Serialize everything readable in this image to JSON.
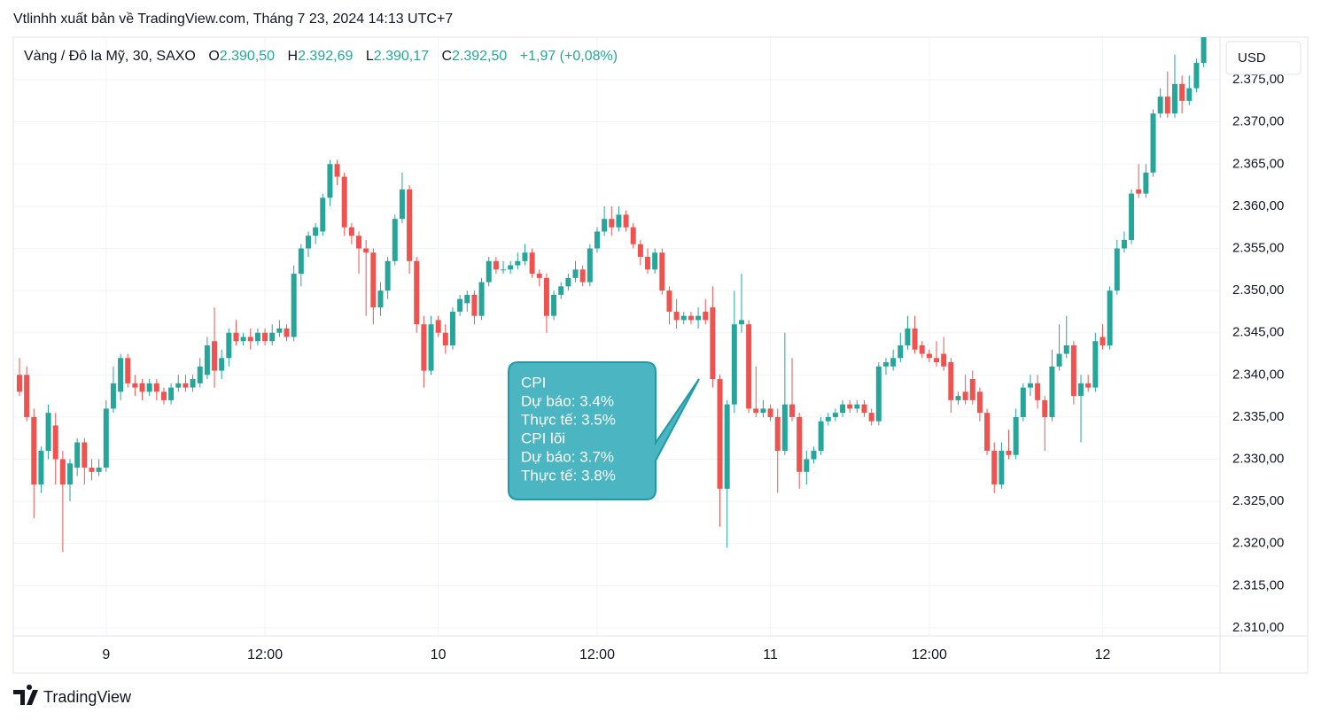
{
  "header": {
    "publish_info": "Vtlinhh xuất bản về TradingView.com, Tháng 7 23, 2024 14:13 UTC+7"
  },
  "legend": {
    "symbol": "Vàng / Đô la Mỹ, 30, SAXO",
    "open_label": "O",
    "open": "2.390,50",
    "high_label": "H",
    "high": "2.392,69",
    "low_label": "L",
    "low": "2.390,17",
    "close_label": "C",
    "close": "2.392,50",
    "change": "+1,97 (+0,08%)"
  },
  "price_axis": {
    "currency": "USD"
  },
  "annotation": {
    "lines": [
      "CPI",
      "Dự báo: 3.4%",
      "Thực tế: 3.5%",
      "CPI lõi",
      "Dự báo: 3.7%",
      "Thực tế: 3.8%"
    ]
  },
  "footer": {
    "brand": "TradingView"
  },
  "chart_data": {
    "type": "candlestick",
    "up_color": "#26a69a",
    "down_color": "#ef5350",
    "grid": true,
    "ylim": [
      2309.05,
      2380.05
    ],
    "yticks": [
      {
        "value": 2310,
        "label": "2.310,00"
      },
      {
        "value": 2315,
        "label": "2.315,00"
      },
      {
        "value": 2320,
        "label": "2.320,00"
      },
      {
        "value": 2325,
        "label": "2.325,00"
      },
      {
        "value": 2330,
        "label": "2.330,00"
      },
      {
        "value": 2335,
        "label": "2.335,00"
      },
      {
        "value": 2340,
        "label": "2.340,00"
      },
      {
        "value": 2345,
        "label": "2.345,00"
      },
      {
        "value": 2350,
        "label": "2.350,00"
      },
      {
        "value": 2355,
        "label": "2.355,00"
      },
      {
        "value": 2360,
        "label": "2.360,00"
      },
      {
        "value": 2365,
        "label": "2.365,00"
      },
      {
        "value": 2370,
        "label": "2.370,00"
      },
      {
        "value": 2375,
        "label": "2.375,00"
      }
    ],
    "categories": [
      null,
      null,
      null,
      null,
      null,
      null,
      null,
      null,
      null,
      null,
      null,
      null,
      "9",
      null,
      null,
      null,
      null,
      null,
      null,
      null,
      null,
      null,
      null,
      null,
      null,
      null,
      null,
      null,
      null,
      null,
      null,
      null,
      null,
      null,
      "12:00",
      null,
      null,
      null,
      null,
      null,
      null,
      null,
      null,
      null,
      null,
      null,
      null,
      null,
      null,
      null,
      null,
      null,
      null,
      null,
      null,
      null,
      null,
      null,
      "10",
      null,
      null,
      null,
      null,
      null,
      null,
      null,
      null,
      null,
      null,
      null,
      null,
      null,
      null,
      null,
      null,
      null,
      null,
      null,
      null,
      null,
      "12:00",
      null,
      null,
      null,
      null,
      null,
      null,
      null,
      null,
      null,
      null,
      null,
      null,
      null,
      null,
      null,
      null,
      null,
      null,
      null,
      null,
      null,
      null,
      null,
      "11",
      null,
      null,
      null,
      null,
      null,
      null,
      null,
      null,
      null,
      null,
      null,
      null,
      null,
      null,
      null,
      null,
      null,
      null,
      null,
      null,
      null,
      "12:00",
      null,
      null,
      null,
      null,
      null,
      null,
      null,
      null,
      null,
      null,
      null,
      null,
      null,
      null,
      null,
      null,
      null,
      null,
      null,
      null,
      null,
      null,
      null,
      "12",
      null,
      null,
      null,
      null,
      null,
      null,
      null,
      null,
      null,
      null,
      null,
      null,
      null,
      null
    ],
    "ohlc": [
      [
        2340,
        2342,
        2337.5,
        2338
      ],
      [
        2340,
        2341,
        2334.5,
        2335
      ],
      [
        2335,
        2336,
        2323,
        2327
      ],
      [
        2327,
        2331.5,
        2326,
        2331
      ],
      [
        2331,
        2336.5,
        2330,
        2335.5
      ],
      [
        2334,
        2335.5,
        2327,
        2330
      ],
      [
        2330,
        2331,
        2319,
        2327
      ],
      [
        2327,
        2330,
        2325,
        2329.5
      ],
      [
        2329,
        2332.5,
        2328,
        2332
      ],
      [
        2332,
        2332.5,
        2327,
        2329
      ],
      [
        2329,
        2330,
        2327.5,
        2328.5
      ],
      [
        2328.5,
        2330,
        2328,
        2329
      ],
      [
        2329,
        2337,
        2328.5,
        2336
      ],
      [
        2336,
        2341,
        2335.5,
        2339
      ],
      [
        2338,
        2342.5,
        2337,
        2342
      ],
      [
        2342,
        2342.5,
        2338.5,
        2339
      ],
      [
        2339,
        2340,
        2337.5,
        2338.5
      ],
      [
        2339,
        2339.5,
        2337,
        2338
      ],
      [
        2338,
        2339.5,
        2337.5,
        2339
      ],
      [
        2339,
        2339.5,
        2337,
        2338
      ],
      [
        2338,
        2338.5,
        2336.5,
        2337
      ],
      [
        2337,
        2339,
        2336.5,
        2338.5
      ],
      [
        2338.5,
        2340,
        2338,
        2339
      ],
      [
        2339,
        2340,
        2338,
        2338.5
      ],
      [
        2338.5,
        2340,
        2338,
        2339.5
      ],
      [
        2339,
        2342,
        2338.5,
        2341
      ],
      [
        2340,
        2344.5,
        2339.5,
        2343.5
      ],
      [
        2344,
        2348,
        2338.5,
        2340.5
      ],
      [
        2340.5,
        2343,
        2339.5,
        2342
      ],
      [
        2342,
        2345.5,
        2341,
        2345
      ],
      [
        2345,
        2346.5,
        2343.5,
        2344
      ],
      [
        2344,
        2345,
        2343.5,
        2344.5
      ],
      [
        2344.5,
        2345.5,
        2343,
        2344
      ],
      [
        2344,
        2345.5,
        2343.5,
        2345
      ],
      [
        2345,
        2345.5,
        2343.5,
        2344
      ],
      [
        2344,
        2346,
        2343.5,
        2345
      ],
      [
        2345,
        2346.5,
        2344.5,
        2345.5
      ],
      [
        2345.5,
        2346,
        2344,
        2344.5
      ],
      [
        2344.5,
        2353,
        2344,
        2352
      ],
      [
        2352,
        2355.5,
        2350.5,
        2355
      ],
      [
        2355,
        2357,
        2354,
        2356.5
      ],
      [
        2356.5,
        2358,
        2355.5,
        2357.5
      ],
      [
        2357,
        2361.5,
        2356.5,
        2361
      ],
      [
        2361,
        2365.5,
        2360,
        2365
      ],
      [
        2365,
        2365.5,
        2362.5,
        2363.5
      ],
      [
        2363.5,
        2364,
        2356.5,
        2357.5
      ],
      [
        2357.5,
        2358,
        2355.5,
        2356.5
      ],
      [
        2356.5,
        2357,
        2352,
        2355
      ],
      [
        2355,
        2356,
        2347,
        2354.5
      ],
      [
        2354.5,
        2355,
        2346,
        2348
      ],
      [
        2348,
        2351,
        2347,
        2350
      ],
      [
        2350,
        2354,
        2349,
        2353.5
      ],
      [
        2353.5,
        2359,
        2353,
        2358.5
      ],
      [
        2358.5,
        2364,
        2358,
        2362
      ],
      [
        2362,
        2362.5,
        2352,
        2353.5
      ],
      [
        2353.5,
        2354,
        2345,
        2346
      ],
      [
        2346,
        2347,
        2338.5,
        2340.5
      ],
      [
        2340.5,
        2347,
        2340,
        2346
      ],
      [
        2346.5,
        2347,
        2344.5,
        2345
      ],
      [
        2345,
        2346,
        2342.5,
        2343.5
      ],
      [
        2343.5,
        2348,
        2343,
        2347.5
      ],
      [
        2347.5,
        2349.5,
        2347,
        2349
      ],
      [
        2348.5,
        2350,
        2347.5,
        2349.5
      ],
      [
        2349.5,
        2350,
        2346,
        2347
      ],
      [
        2347,
        2351.5,
        2346.5,
        2351
      ],
      [
        2351,
        2354,
        2350.5,
        2353.5
      ],
      [
        2353.5,
        2354,
        2352,
        2352.5
      ],
      [
        2352.5,
        2353.5,
        2352,
        2352.5
      ],
      [
        2352.5,
        2353.5,
        2352,
        2353
      ],
      [
        2353,
        2354.5,
        2352.5,
        2353.5
      ],
      [
        2353.5,
        2355.5,
        2353,
        2354.5
      ],
      [
        2354.5,
        2355,
        2351.5,
        2352
      ],
      [
        2352,
        2352.5,
        2350.5,
        2351.5
      ],
      [
        2351.5,
        2352,
        2345,
        2347
      ],
      [
        2347,
        2350,
        2346.5,
        2349.5
      ],
      [
        2349.5,
        2351,
        2349,
        2350.5
      ],
      [
        2350.5,
        2352,
        2350,
        2351.5
      ],
      [
        2351.5,
        2353.5,
        2351,
        2352.5
      ],
      [
        2352.5,
        2353,
        2350.5,
        2351
      ],
      [
        2351,
        2355.5,
        2350.5,
        2355
      ],
      [
        2355,
        2357.5,
        2354.5,
        2357
      ],
      [
        2357,
        2360,
        2356.5,
        2358.5
      ],
      [
        2358.5,
        2360,
        2356.5,
        2357.5
      ],
      [
        2357.5,
        2360,
        2357,
        2359
      ],
      [
        2359,
        2359.5,
        2357,
        2357.5
      ],
      [
        2357.5,
        2358,
        2355,
        2355.5
      ],
      [
        2355.5,
        2356,
        2353,
        2354
      ],
      [
        2354,
        2355,
        2352,
        2352.5
      ],
      [
        2352.5,
        2355,
        2352,
        2354.5
      ],
      [
        2354.5,
        2355,
        2349.5,
        2350
      ],
      [
        2350,
        2350.5,
        2346,
        2347.5
      ],
      [
        2347.5,
        2349,
        2345.5,
        2346.5
      ],
      [
        2346.5,
        2347.5,
        2346,
        2347
      ],
      [
        2347,
        2347.5,
        2346,
        2346.5
      ],
      [
        2346.5,
        2348,
        2345.5,
        2347
      ],
      [
        2347.5,
        2349,
        2346,
        2346.5
      ],
      [
        2348,
        2350.5,
        2338.5,
        2339.5
      ],
      [
        2339.5,
        2340,
        2322,
        2326.5
      ],
      [
        2326.5,
        2337,
        2319.5,
        2336.5
      ],
      [
        2336.5,
        2350,
        2335.5,
        2346
      ],
      [
        2346,
        2352,
        2345,
        2346.5
      ],
      [
        2346,
        2346.5,
        2335.5,
        2336
      ],
      [
        2336,
        2341,
        2335,
        2335.5
      ],
      [
        2335.5,
        2337,
        2335,
        2336
      ],
      [
        2336,
        2336.5,
        2334.5,
        2335
      ],
      [
        2335,
        2336,
        2326,
        2331
      ],
      [
        2331,
        2345,
        2330.5,
        2336.5
      ],
      [
        2336.5,
        2342,
        2334.5,
        2335
      ],
      [
        2335,
        2335.5,
        2326.5,
        2328.5
      ],
      [
        2328.5,
        2331,
        2327,
        2330
      ],
      [
        2330,
        2331.5,
        2329.5,
        2331
      ],
      [
        2331,
        2335,
        2330.5,
        2334.5
      ],
      [
        2334.5,
        2335.5,
        2334,
        2335
      ],
      [
        2335,
        2336,
        2334.5,
        2335.5
      ],
      [
        2335.5,
        2337,
        2335,
        2336.5
      ],
      [
        2336.5,
        2337,
        2335.5,
        2336
      ],
      [
        2336,
        2337,
        2335.5,
        2336.5
      ],
      [
        2336.5,
        2337,
        2335,
        2335.5
      ],
      [
        2335.5,
        2336,
        2334,
        2334.5
      ],
      [
        2334.5,
        2341.5,
        2334,
        2341
      ],
      [
        2341,
        2342,
        2340,
        2341.5
      ],
      [
        2341,
        2343,
        2340.5,
        2342
      ],
      [
        2342,
        2345,
        2341.5,
        2343.5
      ],
      [
        2343.5,
        2347,
        2343,
        2345.5
      ],
      [
        2345.5,
        2347,
        2342.5,
        2343
      ],
      [
        2343.5,
        2344,
        2342,
        2342.5
      ],
      [
        2342.5,
        2343,
        2341.5,
        2342
      ],
      [
        2342,
        2344,
        2341,
        2341.5
      ],
      [
        2342.5,
        2344.5,
        2340.5,
        2341
      ],
      [
        2341.5,
        2342,
        2335.5,
        2337
      ],
      [
        2337,
        2338,
        2336.5,
        2337.5
      ],
      [
        2338,
        2340,
        2336.5,
        2337
      ],
      [
        2339.5,
        2340.5,
        2336.5,
        2337
      ],
      [
        2338,
        2338.5,
        2334.5,
        2335.5
      ],
      [
        2335.5,
        2336,
        2330.5,
        2331
      ],
      [
        2331,
        2332,
        2326,
        2327
      ],
      [
        2327,
        2332,
        2326.5,
        2331
      ],
      [
        2331,
        2333.5,
        2330,
        2330.5
      ],
      [
        2330.5,
        2336,
        2330,
        2335
      ],
      [
        2335,
        2339,
        2334.5,
        2338.5
      ],
      [
        2338.5,
        2340,
        2337.5,
        2339
      ],
      [
        2339,
        2340,
        2336,
        2337
      ],
      [
        2337,
        2337.5,
        2331,
        2335
      ],
      [
        2335,
        2343,
        2334.5,
        2341
      ],
      [
        2341,
        2346,
        2340.5,
        2342.5
      ],
      [
        2342.5,
        2347,
        2342,
        2343.5
      ],
      [
        2343.5,
        2344,
        2336.5,
        2337.5
      ],
      [
        2337.5,
        2340,
        2332,
        2339
      ],
      [
        2339,
        2340,
        2338,
        2338.5
      ],
      [
        2338.5,
        2345,
        2338,
        2344
      ],
      [
        2344.5,
        2346,
        2343,
        2343.5
      ],
      [
        2343.5,
        2350.5,
        2343,
        2350
      ],
      [
        2350,
        2356,
        2349.5,
        2355
      ],
      [
        2355,
        2357,
        2354.5,
        2356
      ],
      [
        2356,
        2362,
        2355.5,
        2361.5
      ],
      [
        2362,
        2365,
        2361,
        2361.5
      ],
      [
        2361.5,
        2365,
        2361,
        2364
      ],
      [
        2364,
        2371.5,
        2363.5,
        2371
      ],
      [
        2371,
        2374,
        2370.5,
        2373
      ],
      [
        2373,
        2376,
        2370.5,
        2371
      ],
      [
        2371,
        2378,
        2370.5,
        2374.5
      ],
      [
        2374.5,
        2375.5,
        2371,
        2372.5
      ],
      [
        2372.5,
        2375.5,
        2372,
        2374
      ],
      [
        2374,
        2377.5,
        2373.5,
        2377
      ],
      [
        2377,
        2381,
        2376.5,
        2380.5
      ]
    ]
  }
}
